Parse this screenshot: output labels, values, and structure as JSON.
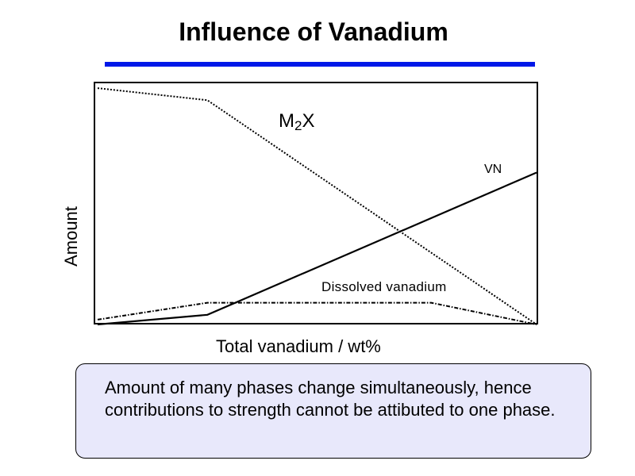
{
  "slide": {
    "title": "Influence of Vanadium",
    "accent_color": "#0018e8"
  },
  "chart_data": {
    "type": "line",
    "title": "",
    "xlabel": "Total vanadium / wt%",
    "ylabel": "Amount",
    "xlim": [
      0,
      1
    ],
    "ylim": [
      0,
      1
    ],
    "ticks": "none",
    "grid": false,
    "legend": "none",
    "series": [
      {
        "name": "M2X",
        "label_main": "M",
        "label_sub": "2",
        "label_tail": "X",
        "style": "dotted",
        "x": [
          0,
          0.25,
          1
        ],
        "y": [
          0.98,
          0.93,
          0
        ]
      },
      {
        "name": "VN",
        "style": "solid",
        "x": [
          0,
          0.25,
          1
        ],
        "y": [
          0,
          0.04,
          0.63
        ]
      },
      {
        "name": "Dissolved vanadium",
        "style": "dash-dot",
        "x": [
          0,
          0.25,
          0.76,
          1
        ],
        "y": [
          0.02,
          0.09,
          0.09,
          0
        ]
      }
    ]
  },
  "note": {
    "text": "Amount of many phases change simultaneously, hence contributions to strength cannot be attibuted to one phase."
  }
}
